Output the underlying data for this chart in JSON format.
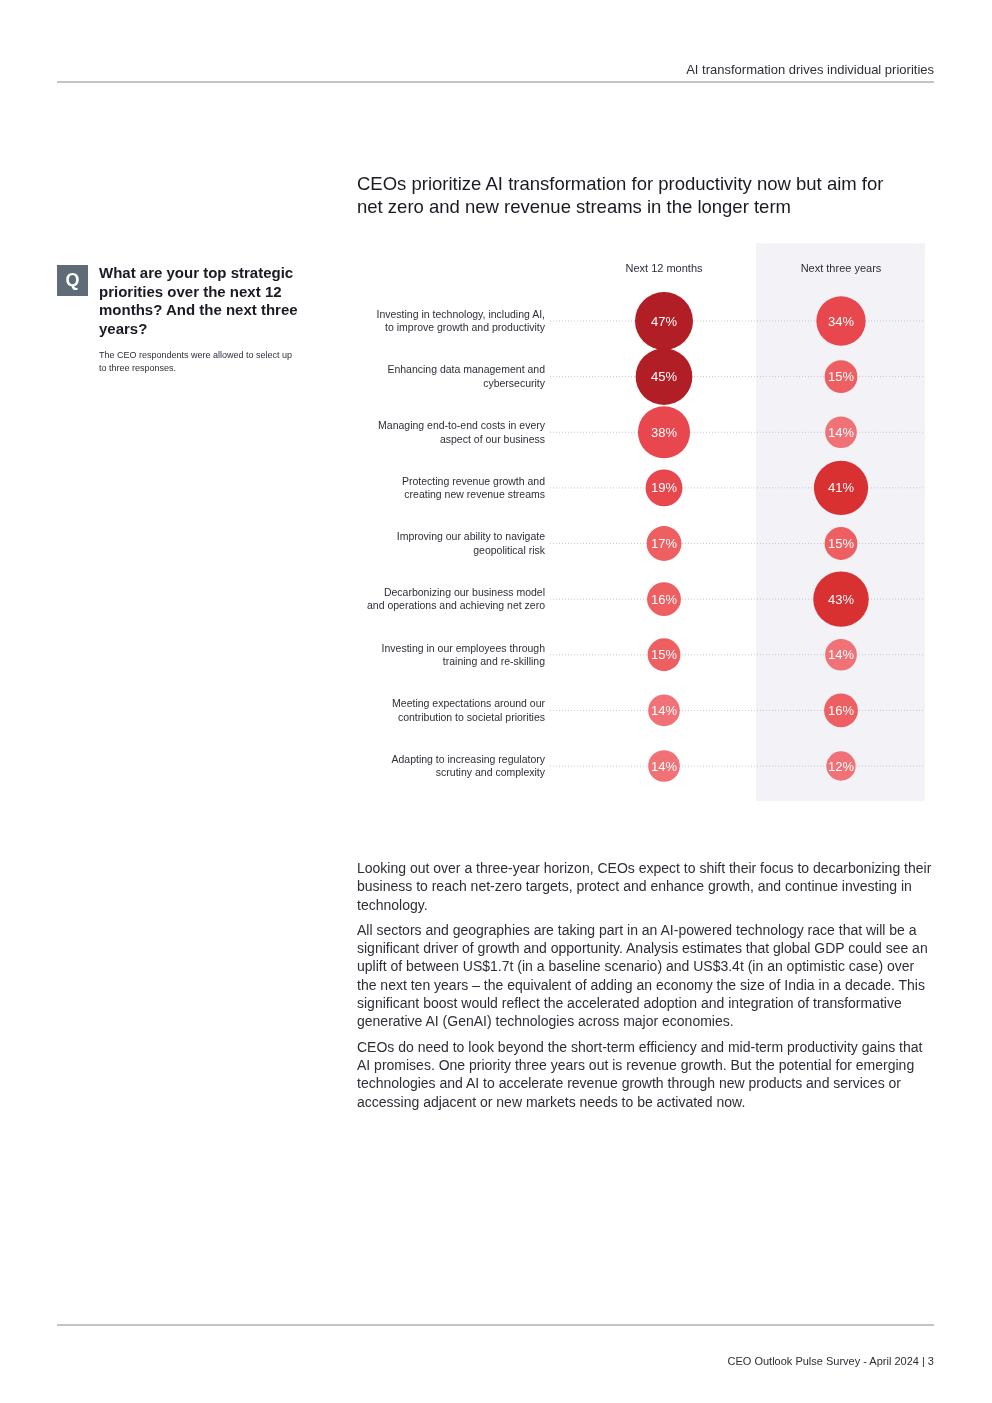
{
  "chart_data": {
    "type": "heatmap",
    "title": "CEOs prioritize AI transformation for productivity now but aim for net zero and new revenue streams in the longer term",
    "subtitle": "What are your top strategic priorities over the next 12 months? And the next three years?",
    "categories": [
      "Next 12 months",
      "Next three years"
    ],
    "y_categories": [
      "Investing in technology, including AI, to improve growth and productivity",
      "Enhancing data management and cybersecurity",
      "Managing end-to-end costs in every aspect of our business",
      "Protecting revenue growth and creating new revenue streams",
      "Improving our ability to navigate geopolitical risk",
      "Decarbonizing our business model and operations and achieving net zero",
      "Investing in our employees through training and re-skilling",
      "Meeting expectations around our contribution to societal priorities",
      "Adapting to increasing regulatory scrutiny and complexity"
    ],
    "cells": [
      [
        47,
        34
      ],
      [
        45,
        15
      ],
      [
        38,
        14
      ],
      [
        19,
        41
      ],
      [
        17,
        15
      ],
      [
        16,
        43
      ],
      [
        15,
        14
      ],
      [
        14,
        16
      ],
      [
        14,
        12
      ]
    ],
    "cell_labels": [
      [
        "47%",
        "34%"
      ],
      [
        "45%",
        "15%"
      ],
      [
        "38%",
        "14%"
      ],
      [
        "19%",
        "41%"
      ],
      [
        "17%",
        "15%"
      ],
      [
        "16%",
        "43%"
      ],
      [
        "15%",
        "14%"
      ],
      [
        "14%",
        "16%"
      ],
      [
        "14%",
        "12%"
      ]
    ],
    "colors": [
      "#b21e26",
      "#e8474d",
      "#b21e26",
      "#ee5f61",
      "#e8474d",
      "#f07277",
      "#e8474d",
      "#d93032",
      "#ee5f61",
      "#ee5f61",
      "#ee5f61",
      "#d93032",
      "#ee5f61",
      "#f07277",
      "#f07277",
      "#ee5f61",
      "#f07277",
      "#f07277"
    ],
    "bands": [
      {
        "axis": "x",
        "from": "Next three years",
        "to": "Next three years",
        "color": "#f3f3f7"
      }
    ],
    "grid": "y",
    "annotations": [
      "AI transformation drives individual priorities",
      "Q",
      "The CEO respondents were allowed to select up to three responses.",
      "Looking out over a three-year horizon, CEOs expect to shift their focus to decarbonizing their business to reach net-zero targets, protect and enhance growth, and continue investing in technology.",
      "All sectors and geographies are taking part in an AI-powered technology race that will be a significant driver of growth and opportunity. Analysis estimates that global GDP could see an uplift of between US$1.7t (in a baseline scenario) and US$3.4t (in an optimistic case) over the next ten years – the equivalent of adding an economy the size of India in a decade. This significant boost would reflect the accelerated adoption and integration of transformative generative AI (GenAI) technologies across major economies.",
      "CEOs do need to look beyond the short-term efficiency and mid-term productivity gains that AI promises. One priority three years out is revenue growth. But the potential for emerging technologies and AI to accelerate revenue growth through new products and services or accessing adjacent or new markets needs to be activated now.",
      "CEO Outlook Pulse Survey - April 2024 | 3"
    ]
  }
}
